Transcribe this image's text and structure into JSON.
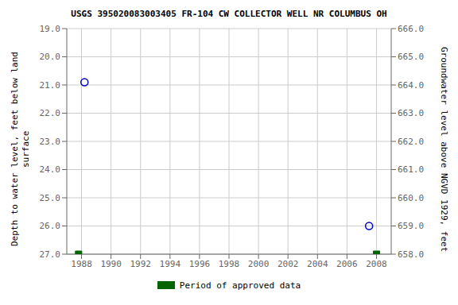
{
  "chart_data": {
    "type": "scatter",
    "title": "USGS 395020083003405 FR-104 CW COLLECTOR WELL NR COLUMBUS OH",
    "y_label": "Depth to water level, feet below land\nsurface",
    "y2_label": "Groundwater level above NGVD 1929, feet",
    "xlim": [
      1987.0,
      2009.0
    ],
    "xticks": [
      1988,
      1990,
      1992,
      1994,
      1996,
      1998,
      2000,
      2002,
      2004,
      2006,
      2008
    ],
    "ylim": [
      27.0,
      19.0
    ],
    "yticks": [
      {
        "value": 19.0,
        "label": "19.0"
      },
      {
        "value": 20.0,
        "label": "20.0"
      },
      {
        "value": 21.0,
        "label": "21.0"
      },
      {
        "value": 22.0,
        "label": "22.0"
      },
      {
        "value": 23.0,
        "label": "23.0"
      },
      {
        "value": 24.0,
        "label": "24.0"
      },
      {
        "value": 25.0,
        "label": "25.0"
      },
      {
        "value": 26.0,
        "label": "26.0"
      },
      {
        "value": 27.0,
        "label": "27.0"
      }
    ],
    "y2lim": [
      658.0,
      666.0
    ],
    "y2ticks": [
      {
        "value": 666.0,
        "label": "666.0"
      },
      {
        "value": 665.0,
        "label": "665.0"
      },
      {
        "value": 664.0,
        "label": "664.0"
      },
      {
        "value": 663.0,
        "label": "663.0"
      },
      {
        "value": 662.0,
        "label": "662.0"
      },
      {
        "value": 661.0,
        "label": "661.0"
      },
      {
        "value": 660.0,
        "label": "660.0"
      },
      {
        "value": 659.0,
        "label": "659.0"
      },
      {
        "value": 658.0,
        "label": "658.0"
      }
    ],
    "grid": true,
    "legend": "bottom",
    "series": [
      {
        "x": [
          1988.2,
          2007.5
        ],
        "values": [
          20.9,
          26.0
        ],
        "color": "#0000cc",
        "marker": "circle_open"
      },
      {
        "name": "Period of approved data",
        "x": [
          1987.8,
          2008.0
        ],
        "values": [
          27.0,
          27.0
        ],
        "color": "#006400",
        "marker": "square"
      }
    ]
  }
}
